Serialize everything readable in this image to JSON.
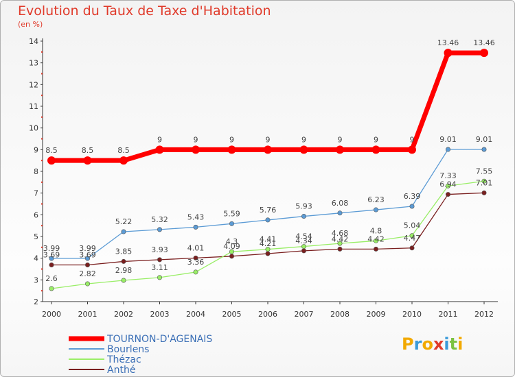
{
  "header": {
    "title": "Evolution du Taux de Taxe d'Habitation",
    "subtitle": "(en %)"
  },
  "chart_data": {
    "type": "line",
    "x": [
      "2000",
      "2001",
      "2002",
      "2003",
      "2004",
      "2005",
      "2006",
      "2007",
      "2008",
      "2009",
      "2010",
      "2011",
      "2012"
    ],
    "ylim": [
      2,
      14
    ],
    "yticks": [
      2,
      3,
      4,
      5,
      6,
      7,
      8,
      9,
      10,
      11,
      12,
      13,
      14
    ],
    "series": [
      {
        "name": "TOURNON-D'AGENAIS",
        "color": "#ff0000",
        "values": [
          8.5,
          8.5,
          8.5,
          9,
          9,
          9,
          9,
          9,
          9,
          9,
          9,
          13.46,
          13.46
        ],
        "labels": [
          "8.5",
          "8.5",
          "8.5",
          "9",
          "9",
          "9",
          "9",
          "9",
          "9",
          "9",
          "9",
          "13.46",
          "13.46"
        ]
      },
      {
        "name": "Bourlens",
        "color": "#5b9bd5",
        "values": [
          3.99,
          3.99,
          5.22,
          5.32,
          5.43,
          5.59,
          5.76,
          5.93,
          6.08,
          6.23,
          6.39,
          9.01,
          9.01
        ],
        "labels": [
          "3.99",
          "3.99",
          "5.22",
          "5.32",
          "5.43",
          "5.59",
          "5.76",
          "5.93",
          "6.08",
          "6.23",
          "6.39",
          "9.01",
          "9.01"
        ]
      },
      {
        "name": "Thézac",
        "color": "#99ee66",
        "values": [
          2.6,
          2.82,
          2.98,
          3.11,
          3.36,
          4.3,
          4.41,
          4.54,
          4.68,
          4.8,
          5.04,
          7.33,
          7.55
        ],
        "labels": [
          "2.6",
          "2.82",
          "2.98",
          "3.11",
          "3.36",
          "4.3",
          "4.41",
          "4.54",
          "4.68",
          "4.8",
          "5.04",
          "7.33",
          "7.55"
        ]
      },
      {
        "name": "Anthé",
        "color": "#7a1f1f",
        "values": [
          3.69,
          3.69,
          3.85,
          3.93,
          4.01,
          4.09,
          4.21,
          4.34,
          4.42,
          4.42,
          4.47,
          6.94,
          7.01
        ],
        "labels": [
          "3.69",
          "3.69",
          "3.85",
          "3.93",
          "4.01",
          "4.09",
          "4.21",
          "4.34",
          "4.42",
          "4.42",
          "4.47",
          "6.94",
          "7.01"
        ]
      }
    ]
  },
  "logo": {
    "text": "Proxiti"
  }
}
